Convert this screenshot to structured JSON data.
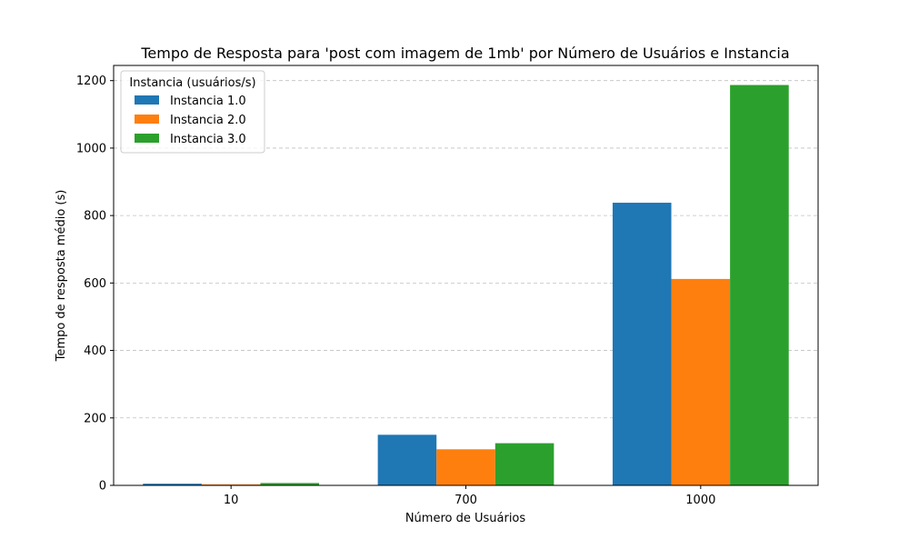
{
  "chart_data": {
    "type": "bar",
    "title": "Tempo de Resposta para 'post com imagem de 1mb' por Número de Usuários e Instancia",
    "xlabel": "Número de Usuários",
    "ylabel": "Tempo de resposta médio (s)",
    "categories": [
      "10",
      "700",
      "1000"
    ],
    "series": [
      {
        "name": "Instancia 1.0",
        "color": "#1f77b4",
        "values": [
          5,
          150,
          838
        ]
      },
      {
        "name": "Instancia 2.0",
        "color": "#ff7f0e",
        "values": [
          3,
          107,
          612
        ]
      },
      {
        "name": "Instancia 3.0",
        "color": "#2ca02c",
        "values": [
          7,
          125,
          1187
        ]
      }
    ],
    "ylim": [
      0,
      1245
    ],
    "yticks": [
      0,
      200,
      400,
      600,
      800,
      1000,
      1200
    ],
    "grid": {
      "y": true,
      "style": "dashed"
    },
    "legend": {
      "title": "Instancia (usuários/s)",
      "placement": "top-left"
    }
  }
}
